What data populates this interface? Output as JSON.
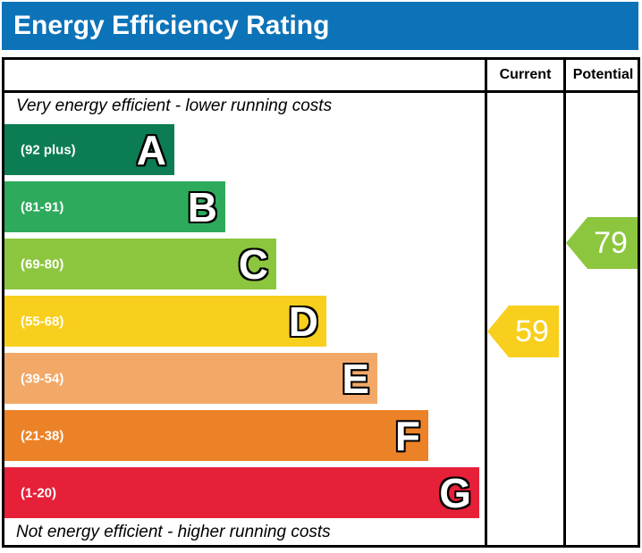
{
  "title": "Energy Efficiency Rating",
  "table": {
    "current_header": "Current",
    "potential_header": "Potential"
  },
  "top_note": "Very energy efficient - lower running costs",
  "bottom_note": "Not energy efficient - higher running costs",
  "colors": {
    "header_blue": "#0d73b8",
    "border_black": "#000000"
  },
  "bands": [
    {
      "letter": "A",
      "range": "(92 plus)",
      "color": "#0c7d52"
    },
    {
      "letter": "B",
      "range": "(81-91)",
      "color": "#2eaa5c"
    },
    {
      "letter": "C",
      "range": "(69-80)",
      "color": "#8cc63f"
    },
    {
      "letter": "D",
      "range": "(55-68)",
      "color": "#f8cf1c"
    },
    {
      "letter": "E",
      "range": "(39-54)",
      "color": "#f2a968"
    },
    {
      "letter": "F",
      "range": "(21-38)",
      "color": "#ec8227"
    },
    {
      "letter": "G",
      "range": "(1-20)",
      "color": "#e52038"
    }
  ],
  "current": {
    "value": "59",
    "band": "D",
    "color": "#f8cf1c"
  },
  "potential": {
    "value": "79",
    "band": "C",
    "color": "#8cc63f"
  },
  "chart_data": {
    "type": "bar",
    "title": "Energy Efficiency Rating",
    "categories": [
      "A",
      "B",
      "C",
      "D",
      "E",
      "F",
      "G"
    ],
    "band_ranges": [
      "92 plus",
      "81-91",
      "69-80",
      "55-68",
      "39-54",
      "21-38",
      "1-20"
    ],
    "band_colors": [
      "#0c7d52",
      "#2eaa5c",
      "#8cc63f",
      "#f8cf1c",
      "#f2a968",
      "#ec8227",
      "#e52038"
    ],
    "scale": [
      1,
      100
    ],
    "series": [
      {
        "name": "Current",
        "values": [
          59
        ],
        "band": "D",
        "color": "#f8cf1c"
      },
      {
        "name": "Potential",
        "values": [
          79
        ],
        "band": "C",
        "color": "#8cc63f"
      }
    ],
    "annotations": [
      "Very energy efficient - lower running costs",
      "Not energy efficient - higher running costs"
    ],
    "legend_position": "top-right-columns",
    "grid": false
  }
}
